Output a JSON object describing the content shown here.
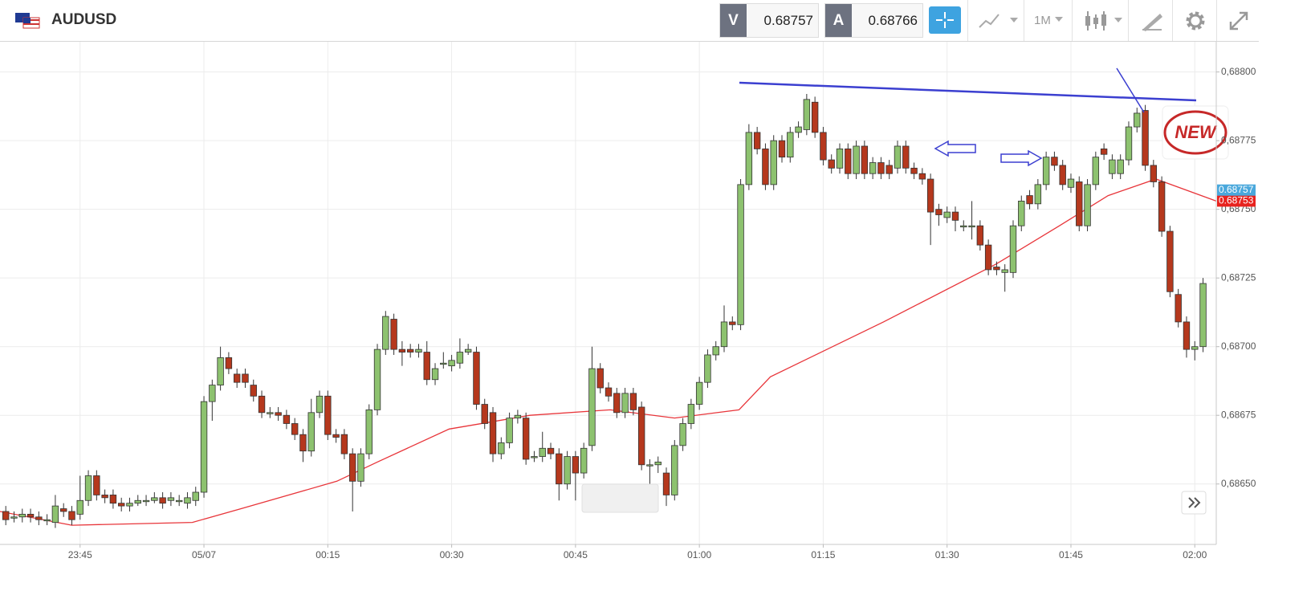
{
  "header": {
    "symbol": "AUDUSD",
    "bid_label": "V",
    "bid": 0.68757,
    "ask_label": "A",
    "ask": 0.68766,
    "timeframe": "1M"
  },
  "chart_data": {
    "type": "candlestick",
    "badge": "NEW",
    "up_color": "#8dc26f",
    "down_color": "#b5381d",
    "grid": true,
    "xlim": [
      -24.7,
      122.6
    ],
    "ylim": [
      0.68628,
      0.68811
    ],
    "xticks": [
      {
        "value": -15,
        "label": "23:45"
      },
      {
        "value": 0,
        "label": "05/07"
      },
      {
        "value": 15,
        "label": "00:15"
      },
      {
        "value": 30,
        "label": "00:30"
      },
      {
        "value": 45,
        "label": "00:45"
      },
      {
        "value": 60,
        "label": "01:00"
      },
      {
        "value": 75,
        "label": "01:15"
      },
      {
        "value": 90,
        "label": "01:30"
      },
      {
        "value": 105,
        "label": "01:45"
      },
      {
        "value": 120,
        "label": "02:00"
      }
    ],
    "yticks": [
      {
        "value": 0.6865,
        "label": "0,68650"
      },
      {
        "value": 0.68675,
        "label": "0,68675"
      },
      {
        "value": 0.687,
        "label": "0,68700"
      },
      {
        "value": 0.68725,
        "label": "0,68725"
      },
      {
        "value": 0.6875,
        "label": "0,68750"
      },
      {
        "value": 0.68775,
        "label": "0,68775"
      },
      {
        "value": 0.688,
        "label": "0,68800"
      }
    ],
    "price_markers": [
      {
        "value": 0.68753,
        "label": "0.68753",
        "color": "#e8231f"
      },
      {
        "value": 0.68757,
        "label": "0.68757",
        "color": "#4aa8dc"
      }
    ],
    "x": [
      -24,
      -23,
      -22,
      -21,
      -20,
      -19,
      -18,
      -17,
      -16,
      -15,
      -14,
      -13,
      -12,
      -11,
      -10,
      -9,
      -8,
      -7,
      -6,
      -5,
      -4,
      -3,
      -2,
      -1,
      0,
      1,
      2,
      3,
      4,
      5,
      6,
      7,
      8,
      9,
      10,
      11,
      12,
      13,
      14,
      15,
      16,
      17,
      18,
      19,
      20,
      21,
      22,
      23,
      24,
      25,
      26,
      27,
      28,
      29,
      30,
      31,
      32,
      33,
      34,
      35,
      36,
      37,
      38,
      39,
      40,
      41,
      42,
      43,
      44,
      45,
      46,
      47,
      48,
      49,
      50,
      51,
      52,
      53,
      54,
      55,
      56,
      57,
      58,
      59,
      60,
      61,
      62,
      63,
      64,
      65,
      66,
      67,
      68,
      69,
      70,
      71,
      72,
      73,
      74,
      75,
      76,
      77,
      78,
      79,
      80,
      81,
      82,
      83,
      84,
      85,
      86,
      87,
      88,
      89,
      90,
      91,
      92,
      93,
      94,
      95,
      96,
      97,
      98,
      99,
      100,
      101,
      102,
      103,
      104,
      105,
      106,
      107,
      108,
      109,
      110,
      111,
      112,
      113,
      114,
      115,
      116,
      117,
      118,
      119,
      120,
      121
    ],
    "open": [
      0.6864,
      0.68638,
      0.68638,
      0.68639,
      0.68638,
      0.68637,
      0.68636,
      0.68641,
      0.6864,
      0.68639,
      0.68644,
      0.68653,
      0.68646,
      0.68646,
      0.68643,
      0.68642,
      0.68643,
      0.68644,
      0.68644,
      0.68645,
      0.68644,
      0.68644,
      0.68643,
      0.68644,
      0.68647,
      0.6868,
      0.68686,
      0.68696,
      0.6869,
      0.6869,
      0.68686,
      0.68682,
      0.68676,
      0.68676,
      0.68675,
      0.68672,
      0.68668,
      0.68662,
      0.68676,
      0.68682,
      0.68668,
      0.68668,
      0.68661,
      0.68651,
      0.68661,
      0.68677,
      0.68699,
      0.6871,
      0.68699,
      0.68699,
      0.68698,
      0.68698,
      0.68688,
      0.68694,
      0.68693,
      0.68694,
      0.68698,
      0.68698,
      0.68679,
      0.68676,
      0.68661,
      0.68665,
      0.68674,
      0.68674,
      0.6866,
      0.6866,
      0.68663,
      0.68661,
      0.6865,
      0.6866,
      0.68654,
      0.68664,
      0.68692,
      0.68685,
      0.68683,
      0.68676,
      0.68683,
      0.68678,
      0.68657,
      0.68657,
      0.68654,
      0.68646,
      0.68664,
      0.68672,
      0.68679,
      0.68687,
      0.68697,
      0.687,
      0.68709,
      0.68708,
      0.68759,
      0.68778,
      0.68772,
      0.68759,
      0.68775,
      0.68769,
      0.68778,
      0.68779,
      0.68789,
      0.68778,
      0.68768,
      0.68765,
      0.68772,
      0.68763,
      0.68773,
      0.68763,
      0.68767,
      0.68766,
      0.68765,
      0.68773,
      0.68765,
      0.68763,
      0.68761,
      0.6875,
      0.68747,
      0.68749,
      0.68744,
      0.68744,
      0.68744,
      0.68737,
      0.68729,
      0.68727,
      0.68727,
      0.68744,
      0.68755,
      0.68752,
      0.68759,
      0.68769,
      0.68766,
      0.68758,
      0.6876,
      0.68744,
      0.68759,
      0.68772,
      0.68763,
      0.68763,
      0.68768,
      0.6878,
      0.68786,
      0.68766,
      0.6876,
      0.68742,
      0.68719,
      0.68709,
      0.68699,
      0.687
    ],
    "high": [
      0.68642,
      0.6864,
      0.68641,
      0.68641,
      0.6864,
      0.68639,
      0.68646,
      0.68643,
      0.68642,
      0.68653,
      0.68655,
      0.68655,
      0.68648,
      0.68648,
      0.68645,
      0.68645,
      0.68646,
      0.68646,
      0.68647,
      0.68647,
      0.68647,
      0.68646,
      0.68647,
      0.68649,
      0.68682,
      0.68688,
      0.687,
      0.68698,
      0.68692,
      0.68692,
      0.68688,
      0.68684,
      0.68678,
      0.68678,
      0.68677,
      0.68674,
      0.6867,
      0.68681,
      0.68684,
      0.68684,
      0.6867,
      0.6867,
      0.68663,
      0.68663,
      0.68679,
      0.68701,
      0.68713,
      0.68712,
      0.68702,
      0.68701,
      0.68701,
      0.68702,
      0.68694,
      0.68698,
      0.68697,
      0.68703,
      0.68701,
      0.687,
      0.68681,
      0.68678,
      0.68667,
      0.68676,
      0.68677,
      0.68676,
      0.68662,
      0.68669,
      0.68665,
      0.68663,
      0.68662,
      0.68662,
      0.68665,
      0.687,
      0.68694,
      0.68687,
      0.68685,
      0.68685,
      0.68685,
      0.6868,
      0.68659,
      0.6866,
      0.68656,
      0.68666,
      0.68674,
      0.68681,
      0.68689,
      0.68699,
      0.68702,
      0.68715,
      0.68711,
      0.68761,
      0.68781,
      0.6878,
      0.68774,
      0.68777,
      0.68777,
      0.6878,
      0.68782,
      0.68792,
      0.68791,
      0.6878,
      0.6877,
      0.68774,
      0.68774,
      0.68775,
      0.68775,
      0.68769,
      0.68769,
      0.68768,
      0.68775,
      0.68775,
      0.68767,
      0.68765,
      0.68763,
      0.68752,
      0.68751,
      0.68751,
      0.68746,
      0.68753,
      0.68746,
      0.68739,
      0.68731,
      0.6873,
      0.68746,
      0.68755,
      0.68757,
      0.68761,
      0.68771,
      0.68771,
      0.68768,
      0.68763,
      0.68762,
      0.68761,
      0.68771,
      0.68774,
      0.6877,
      0.6877,
      0.68782,
      0.68787,
      0.68788,
      0.68768,
      0.68762,
      0.68744,
      0.68721,
      0.68711,
      0.68702,
      0.68725
    ],
    "low": [
      0.68635,
      0.68636,
      0.68636,
      0.68636,
      0.68635,
      0.68635,
      0.68634,
      0.68638,
      0.68635,
      0.68637,
      0.68642,
      0.68644,
      0.68643,
      0.68641,
      0.6864,
      0.6864,
      0.68642,
      0.68642,
      0.68643,
      0.68641,
      0.68642,
      0.68642,
      0.68641,
      0.68642,
      0.68645,
      0.68673,
      0.68684,
      0.6869,
      0.68685,
      0.68685,
      0.6868,
      0.68674,
      0.68674,
      0.68673,
      0.6867,
      0.68666,
      0.68658,
      0.6866,
      0.68674,
      0.68666,
      0.68665,
      0.68659,
      0.6864,
      0.68649,
      0.68659,
      0.68675,
      0.68697,
      0.68697,
      0.68693,
      0.68696,
      0.68696,
      0.68686,
      0.68686,
      0.68692,
      0.68691,
      0.68692,
      0.68697,
      0.68677,
      0.6867,
      0.68658,
      0.68659,
      0.68663,
      0.68672,
      0.68657,
      0.68658,
      0.68658,
      0.68659,
      0.68644,
      0.68648,
      0.68644,
      0.68652,
      0.68662,
      0.68683,
      0.6868,
      0.68674,
      0.68674,
      0.68675,
      0.68655,
      0.6864,
      0.68654,
      0.68642,
      0.68644,
      0.68662,
      0.6867,
      0.68677,
      0.68685,
      0.68695,
      0.68698,
      0.68706,
      0.68706,
      0.68757,
      0.6877,
      0.68757,
      0.68757,
      0.68767,
      0.68767,
      0.68776,
      0.68777,
      0.68776,
      0.68766,
      0.68763,
      0.68763,
      0.68761,
      0.68761,
      0.68761,
      0.68761,
      0.68761,
      0.68761,
      0.68763,
      0.68763,
      0.68761,
      0.68759,
      0.68737,
      0.68744,
      0.68745,
      0.68742,
      0.68742,
      0.68739,
      0.68735,
      0.68726,
      0.68726,
      0.6872,
      0.68725,
      0.68742,
      0.6875,
      0.6875,
      0.68757,
      0.68764,
      0.68757,
      0.68756,
      0.68742,
      0.68742,
      0.68757,
      0.68768,
      0.68761,
      0.68761,
      0.68766,
      0.68778,
      0.68764,
      0.68758,
      0.6874,
      0.68718,
      0.68707,
      0.68696,
      0.68695,
      0.68698
    ],
    "close": [
      0.68637,
      0.68638,
      0.68639,
      0.68638,
      0.68637,
      0.68637,
      0.68642,
      0.6864,
      0.68637,
      0.68644,
      0.68653,
      0.68646,
      0.68645,
      0.68643,
      0.68642,
      0.68643,
      0.68644,
      0.68644,
      0.68645,
      0.68643,
      0.68645,
      0.68644,
      0.68645,
      0.68647,
      0.6868,
      0.68686,
      0.68696,
      0.68692,
      0.68687,
      0.68687,
      0.68682,
      0.68676,
      0.68676,
      0.68675,
      0.68672,
      0.68668,
      0.68662,
      0.68676,
      0.68682,
      0.68668,
      0.68667,
      0.68661,
      0.68651,
      0.68661,
      0.68677,
      0.68699,
      0.68711,
      0.68699,
      0.68698,
      0.68698,
      0.68699,
      0.68688,
      0.68692,
      0.68694,
      0.68695,
      0.68698,
      0.68699,
      0.68679,
      0.68672,
      0.68661,
      0.68665,
      0.68674,
      0.68675,
      0.68659,
      0.6866,
      0.68663,
      0.68661,
      0.6865,
      0.6866,
      0.68654,
      0.68663,
      0.68692,
      0.68685,
      0.68682,
      0.68676,
      0.68683,
      0.68677,
      0.68657,
      0.68657,
      0.68658,
      0.68646,
      0.68664,
      0.68672,
      0.68679,
      0.68687,
      0.68697,
      0.687,
      0.68709,
      0.68708,
      0.68759,
      0.68778,
      0.68772,
      0.68759,
      0.68775,
      0.68769,
      0.68778,
      0.6878,
      0.6879,
      0.68778,
      0.68768,
      0.68765,
      0.68772,
      0.68763,
      0.68773,
      0.68763,
      0.68767,
      0.68763,
      0.68763,
      0.68773,
      0.68765,
      0.68763,
      0.68761,
      0.68749,
      0.68748,
      0.68749,
      0.68746,
      0.68744,
      0.68744,
      0.68737,
      0.68728,
      0.68728,
      0.68728,
      0.68744,
      0.68753,
      0.68752,
      0.68759,
      0.68769,
      0.68766,
      0.68759,
      0.68761,
      0.68744,
      0.68759,
      0.68769,
      0.6877,
      0.68768,
      0.68768,
      0.6878,
      0.68785,
      0.68766,
      0.6876,
      0.68742,
      0.6872,
      0.68709,
      0.68699,
      0.687,
      0.68723
    ],
    "moving_average": {
      "color": "#e8353a",
      "x": [
        -24.7,
        -16,
        -1.4,
        4.5,
        16.1,
        21,
        29.7,
        39.5,
        49.2,
        57,
        64.8,
        68.6,
        82.3,
        95.9,
        103.6,
        109.5,
        115.3,
        122.6
      ],
      "values": [
        0.6864,
        0.68635,
        0.68636,
        0.68641,
        0.68651,
        0.68658,
        0.6867,
        0.68675,
        0.68677,
        0.68674,
        0.68677,
        0.68689,
        0.68709,
        0.6873,
        0.68744,
        0.68755,
        0.68761,
        0.68753
      ]
    }
  }
}
